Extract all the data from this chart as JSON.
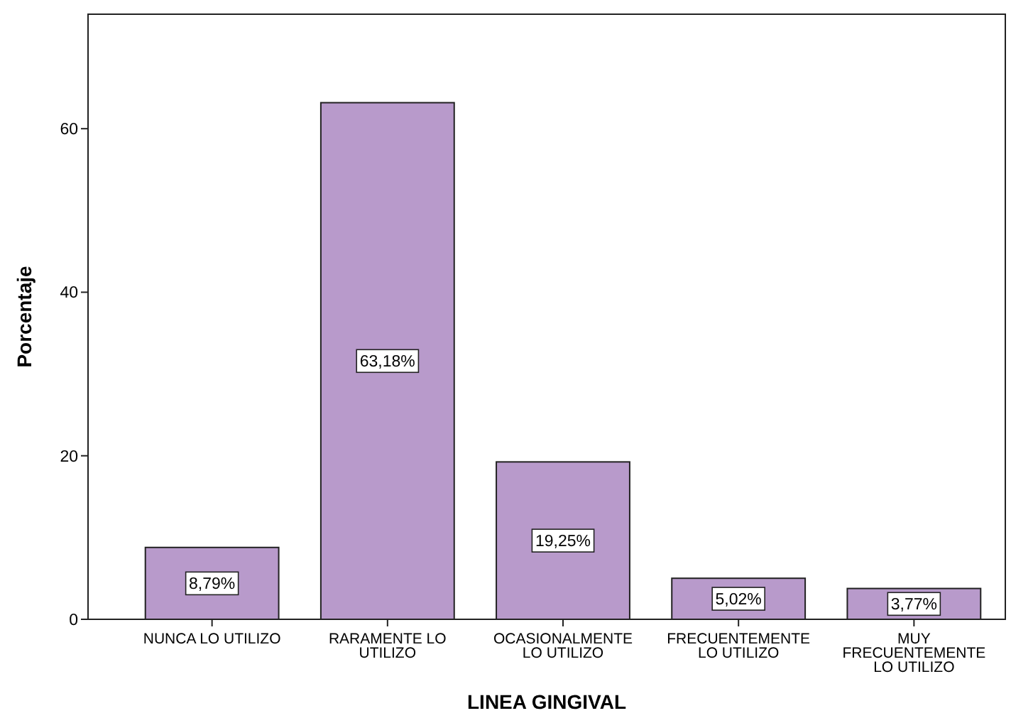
{
  "chart_data": {
    "type": "bar",
    "xlabel": "LINEA GINGIVAL",
    "ylabel": "Porcentaje",
    "categories": [
      "NUNCA LO UTILIZO",
      "RARAMENTE LO UTILIZO",
      "OCASIONALMENTE LO UTILIZO",
      "FRECUENTEMENTE LO UTILIZO",
      "MUY FRECUENTEMENTE LO UTILIZO"
    ],
    "values": [
      8.79,
      63.18,
      19.25,
      5.02,
      3.77
    ],
    "value_labels": [
      "8,79%",
      "63,18%",
      "19,25%",
      "5,02%",
      "3,77%"
    ],
    "color": "#b89acb",
    "ylim": [
      0,
      74
    ],
    "yticks": [
      0,
      20,
      40,
      60
    ],
    "grid": false
  }
}
